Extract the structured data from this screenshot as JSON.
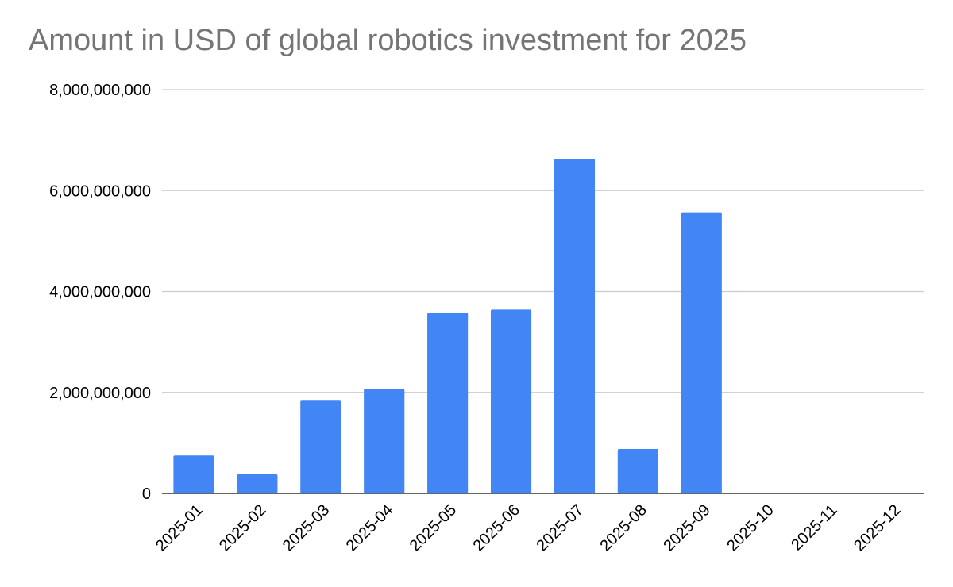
{
  "chart_data": {
    "type": "bar",
    "title": "Amount in USD of global robotics investment for 2025",
    "xlabel": "",
    "ylabel": "",
    "categories": [
      "2025-01",
      "2025-02",
      "2025-03",
      "2025-04",
      "2025-05",
      "2025-06",
      "2025-07",
      "2025-08",
      "2025-09",
      "2025-10",
      "2025-11",
      "2025-12"
    ],
    "values": [
      750000000,
      380000000,
      1850000000,
      2070000000,
      3580000000,
      3640000000,
      6630000000,
      880000000,
      5570000000,
      0,
      0,
      0
    ],
    "ylim": [
      0,
      8000000000
    ],
    "yticks": [
      0,
      2000000000,
      4000000000,
      6000000000,
      8000000000
    ],
    "ytick_labels": [
      "0",
      "2,000,000,000",
      "4,000,000,000",
      "6,000,000,000",
      "8,000,000,000"
    ],
    "bar_color": "#4285f4",
    "grid": true,
    "legend": "none"
  }
}
